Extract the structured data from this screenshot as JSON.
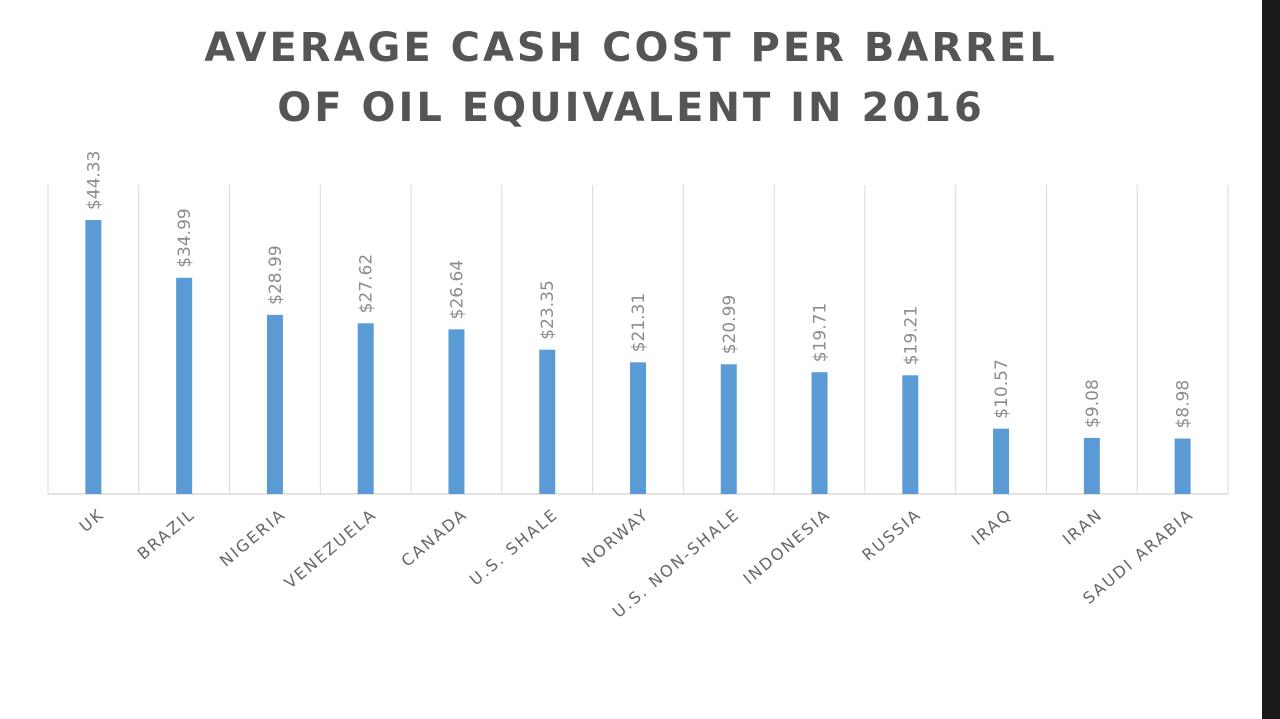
{
  "chart_data": {
    "type": "bar",
    "title_lines": [
      "AVERAGE CASH COST PER BARREL",
      "OF OIL EQUIVALENT  IN 2016"
    ],
    "categories": [
      "UK",
      "BRAZIL",
      "NIGERIA",
      "VENEZUELA",
      "CANADA",
      "U.S. SHALE",
      "NORWAY",
      "U.S. NON-SHALE",
      "INDONESIA",
      "RUSSIA",
      "IRAQ",
      "IRAN",
      "SAUDI ARABIA"
    ],
    "values": [
      44.33,
      34.99,
      28.99,
      27.62,
      26.64,
      23.35,
      21.31,
      20.99,
      19.71,
      19.21,
      10.57,
      9.08,
      8.98
    ],
    "value_labels": [
      "$44.33",
      "$34.99",
      "$28.99",
      "$27.62",
      "$26.64",
      "$23.35",
      "$21.31",
      "$20.99",
      "$19.71",
      "$19.21",
      "$10.57",
      "$9.08",
      "$8.98"
    ],
    "ylim": [
      0,
      50
    ],
    "grid": "vertical",
    "bar_color": "#5b9bd5",
    "grid_color": "#d9d9d9"
  }
}
